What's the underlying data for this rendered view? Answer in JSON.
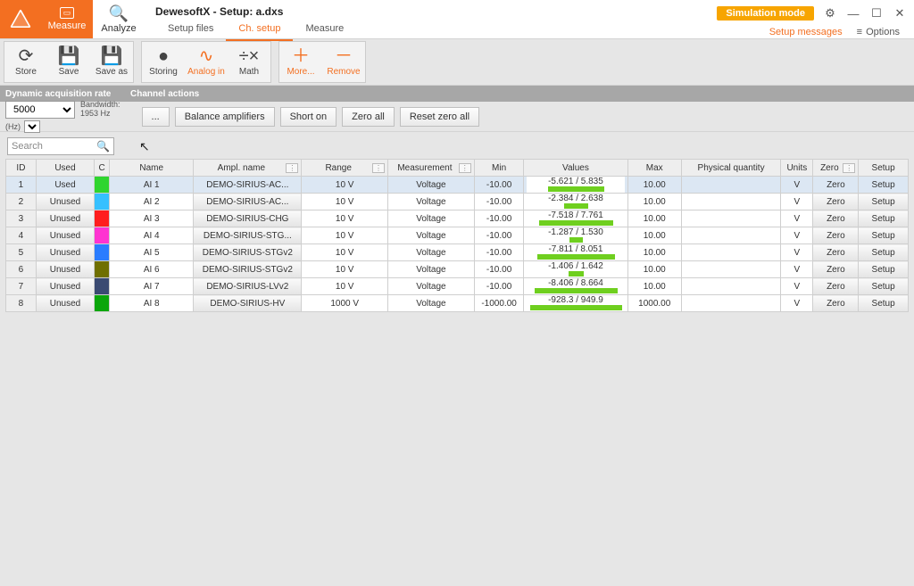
{
  "app": {
    "title": "DewesoftX - Setup: a.dxs",
    "measure_label": "Measure",
    "analyze_label": "Analyze",
    "tabs": [
      "Setup files",
      "Ch. setup",
      "Measure"
    ],
    "active_tab": 1,
    "sim_badge": "Simulation mode",
    "setup_messages": "Setup messages",
    "options": "Options"
  },
  "ribbon": {
    "items": [
      {
        "label": "Store",
        "icon": "⟳",
        "orange": false
      },
      {
        "label": "Save",
        "icon": "💾",
        "orange": false
      },
      {
        "label": "Save as",
        "icon": "💾",
        "orange": false
      },
      {
        "label": "Storing",
        "icon": "●",
        "orange": false,
        "group": 2
      },
      {
        "label": "Analog in",
        "icon": "∿",
        "orange": true,
        "group": 2
      },
      {
        "label": "Math",
        "icon": "÷×",
        "orange": false,
        "group": 2
      },
      {
        "label": "More...",
        "icon": "＋",
        "orange": true,
        "group": 3
      },
      {
        "label": "Remove",
        "icon": "－",
        "orange": true,
        "group": 3
      }
    ]
  },
  "cfg": {
    "dyn_label": "Dynamic acquisition rate",
    "chan_label": "Channel actions",
    "rate_value": "5000",
    "rate_unit": "(Hz)",
    "bandwidth": "Bandwidth:\n1953 Hz",
    "buttons": [
      "...",
      "Balance amplifiers",
      "Short on",
      "Zero all",
      "Reset zero all"
    ]
  },
  "search_placeholder": "Search",
  "table": {
    "headers": [
      "ID",
      "Used",
      "C",
      "Name",
      "Ampl. name",
      "Range",
      "Measurement",
      "Min",
      "Values",
      "Max",
      "Physical quantity",
      "Units",
      "Zero",
      "Setup"
    ],
    "tri_cols": [
      4,
      5,
      6,
      12
    ],
    "rows": [
      {
        "id": 1,
        "used": "Used",
        "color": "#2fd52f",
        "name": "AI 1",
        "amp": "DEMO-SIRIUS-AC...",
        "range": "10 V",
        "meas": "Voltage",
        "min": "-10.00",
        "val": "-5.621 / 5.835",
        "barL": 56,
        "barR": 58,
        "max": "10.00",
        "pq": "",
        "units": "V",
        "zero": "Zero",
        "setup": "Setup",
        "usedrow": true
      },
      {
        "id": 2,
        "used": "Unused",
        "color": "#36c0ff",
        "name": "AI 2",
        "amp": "DEMO-SIRIUS-AC...",
        "range": "10 V",
        "meas": "Voltage",
        "min": "-10.00",
        "val": "-2.384 / 2.638",
        "barL": 24,
        "barR": 26,
        "max": "10.00",
        "pq": "",
        "units": "V",
        "zero": "Zero",
        "setup": "Setup"
      },
      {
        "id": 3,
        "used": "Unused",
        "color": "#ff1e1e",
        "name": "AI 3",
        "amp": "DEMO-SIRIUS-CHG",
        "range": "10 V",
        "meas": "Voltage",
        "min": "-10.00",
        "val": "-7.518 / 7.761",
        "barL": 75,
        "barR": 78,
        "max": "10.00",
        "pq": "",
        "units": "V",
        "zero": "Zero",
        "setup": "Setup"
      },
      {
        "id": 4,
        "used": "Unused",
        "color": "#ff33d1",
        "name": "AI 4",
        "amp": "DEMO-SIRIUS-STG...",
        "range": "10 V",
        "meas": "Voltage",
        "min": "-10.00",
        "val": "-1.287 / 1.530",
        "barL": 13,
        "barR": 15,
        "max": "10.00",
        "pq": "",
        "units": "V",
        "zero": "Zero",
        "setup": "Setup"
      },
      {
        "id": 5,
        "used": "Unused",
        "color": "#2a7cff",
        "name": "AI 5",
        "amp": "DEMO-SIRIUS-STGv2",
        "range": "10 V",
        "meas": "Voltage",
        "min": "-10.00",
        "val": "-7.811 / 8.051",
        "barL": 78,
        "barR": 81,
        "max": "10.00",
        "pq": "",
        "units": "V",
        "zero": "Zero",
        "setup": "Setup"
      },
      {
        "id": 6,
        "used": "Unused",
        "color": "#6f6f00",
        "name": "AI 6",
        "amp": "DEMO-SIRIUS-STGv2",
        "range": "10 V",
        "meas": "Voltage",
        "min": "-10.00",
        "val": "-1.406 / 1.642",
        "barL": 14,
        "barR": 16,
        "max": "10.00",
        "pq": "",
        "units": "V",
        "zero": "Zero",
        "setup": "Setup"
      },
      {
        "id": 7,
        "used": "Unused",
        "color": "#3a4a72",
        "name": "AI 7",
        "amp": "DEMO-SIRIUS-LVv2",
        "range": "10 V",
        "meas": "Voltage",
        "min": "-10.00",
        "val": "-8.406 / 8.664",
        "barL": 84,
        "barR": 87,
        "max": "10.00",
        "pq": "",
        "units": "V",
        "zero": "Zero",
        "setup": "Setup"
      },
      {
        "id": 8,
        "used": "Unused",
        "color": "#0aa60a",
        "name": "AI 8",
        "amp": "DEMO-SIRIUS-HV",
        "range": "1000 V",
        "meas": "Voltage",
        "min": "-1000.00",
        "val": "-928.3 / 949.9",
        "barL": 93,
        "barR": 95,
        "max": "1000.00",
        "pq": "",
        "units": "V",
        "zero": "Zero",
        "setup": "Setup"
      }
    ]
  },
  "colors": {
    "accent": "#f36f21",
    "valbar": "#6fcf1f"
  }
}
